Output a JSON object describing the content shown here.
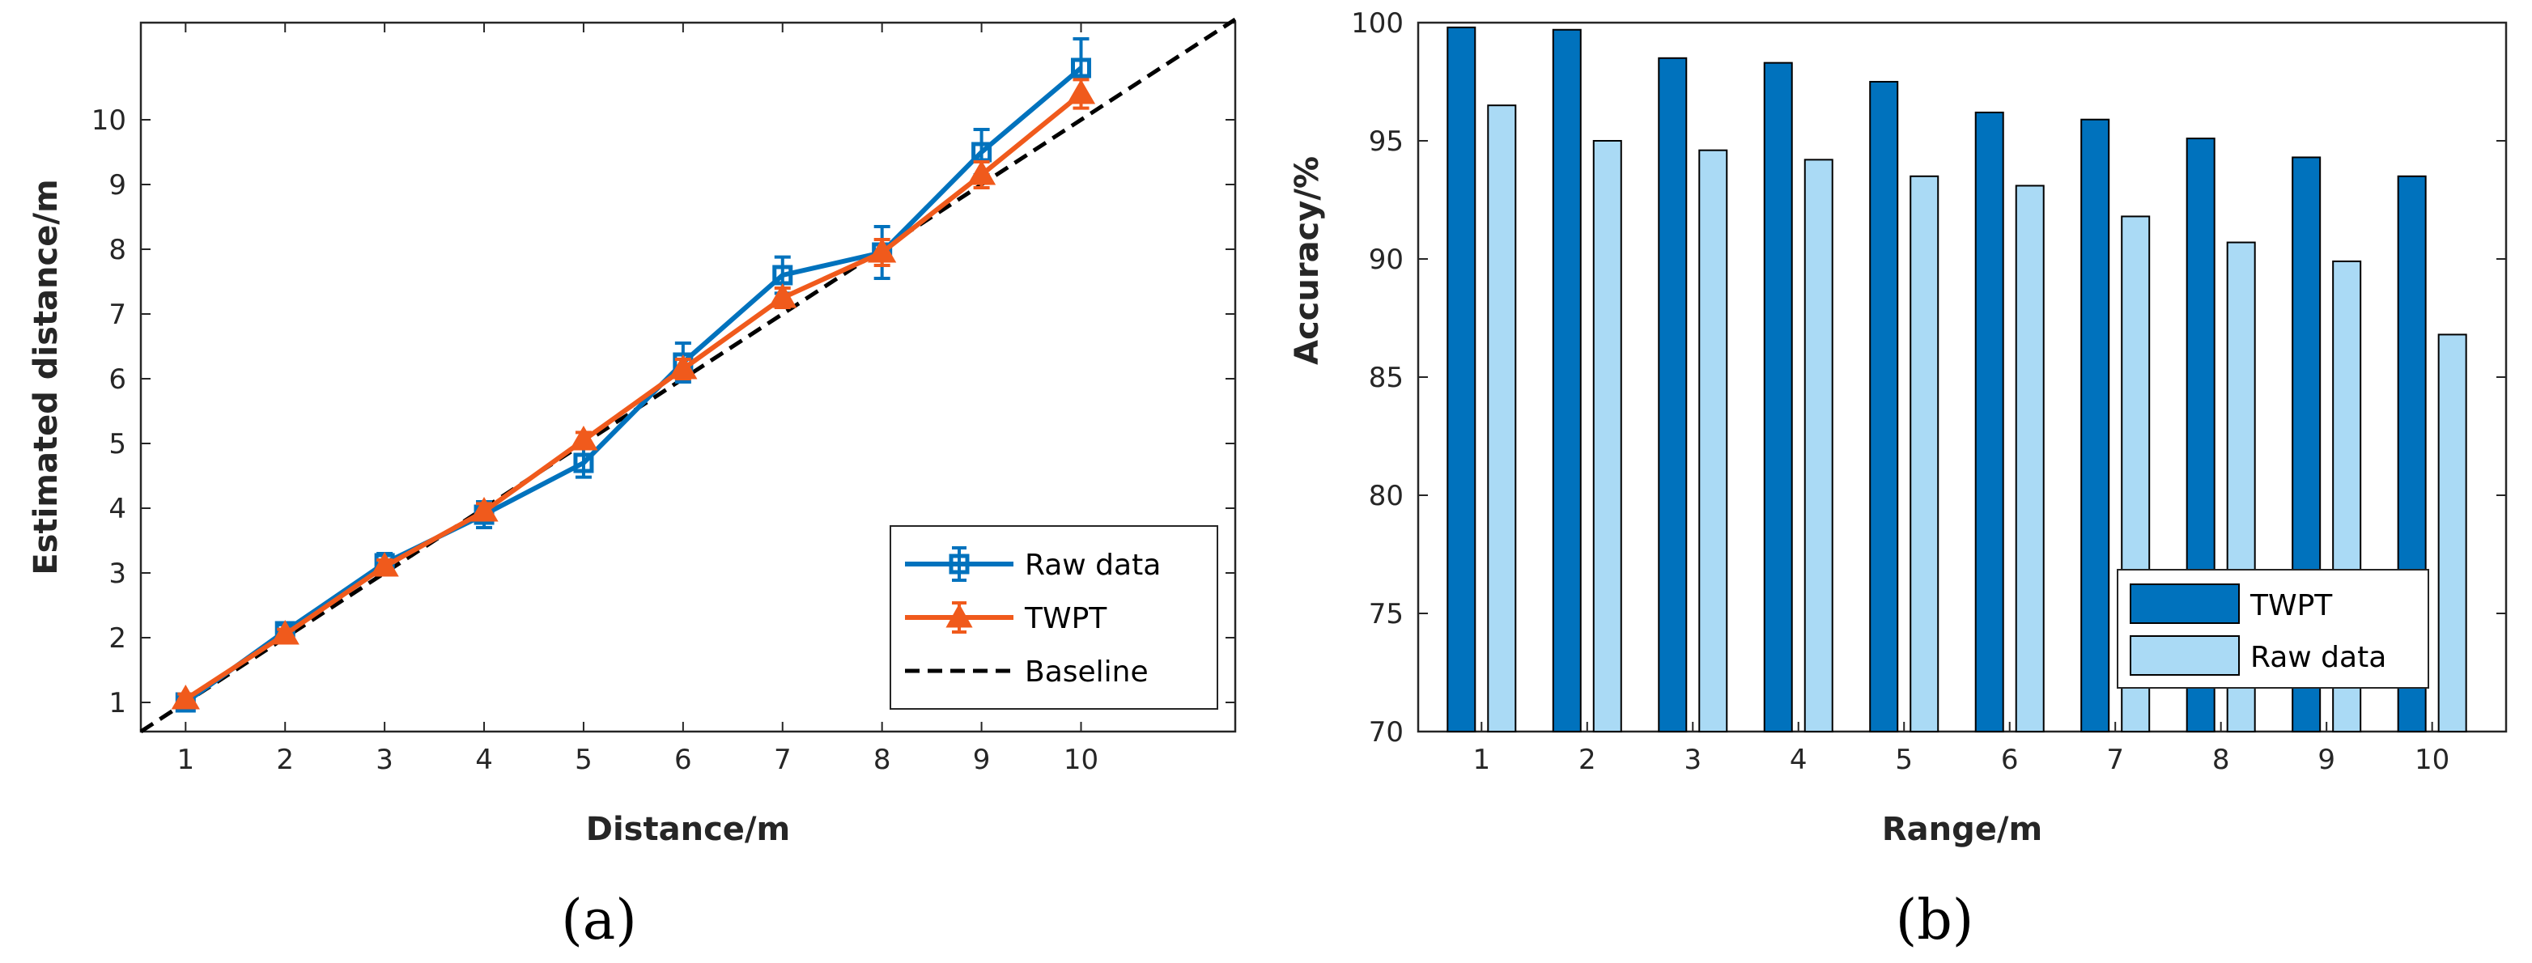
{
  "chart_data": [
    {
      "type": "line",
      "panel_label": "(a)",
      "xlabel": "Distance/m",
      "ylabel": "Estimated distance/m",
      "xlim": [
        0.55,
        11.55
      ],
      "ylim": [
        0.55,
        11.5
      ],
      "xticks": [
        "1",
        "2",
        "3",
        "4",
        "5",
        "6",
        "7",
        "8",
        "9",
        "10"
      ],
      "yticks": [
        "1",
        "2",
        "3",
        "4",
        "5",
        "6",
        "7",
        "8",
        "9",
        "10"
      ],
      "x": [
        1,
        2,
        3,
        4,
        5,
        6,
        7,
        8,
        9,
        10
      ],
      "series": [
        {
          "name": "Raw data",
          "color": "#0072BD",
          "marker": "square",
          "values": [
            1.0,
            2.1,
            3.15,
            3.9,
            4.7,
            6.25,
            7.6,
            7.95,
            9.5,
            10.8
          ],
          "errors": [
            0.12,
            0.1,
            0.15,
            0.2,
            0.22,
            0.3,
            0.28,
            0.4,
            0.35,
            0.45
          ]
        },
        {
          "name": "TWPT",
          "color": "#F05A1C",
          "marker": "triangle",
          "values": [
            1.05,
            2.05,
            3.1,
            3.95,
            5.05,
            6.15,
            7.25,
            7.95,
            9.15,
            10.4
          ],
          "errors": [
            0.08,
            0.08,
            0.1,
            0.12,
            0.12,
            0.15,
            0.15,
            0.2,
            0.2,
            0.22
          ]
        },
        {
          "name": "Baseline",
          "color": "#000000",
          "style": "dashed",
          "x": [
            0.55,
            11.55
          ],
          "values": [
            0.55,
            11.55
          ]
        }
      ],
      "legend": "bottom-right"
    },
    {
      "type": "bar",
      "panel_label": "(b)",
      "xlabel": "Range/m",
      "ylabel": "Accuracy/%",
      "ylim": [
        70,
        100
      ],
      "yticks": [
        "70",
        "75",
        "80",
        "85",
        "90",
        "95",
        "100"
      ],
      "categories": [
        "1",
        "2",
        "3",
        "4",
        "5",
        "6",
        "7",
        "8",
        "9",
        "10"
      ],
      "series": [
        {
          "name": "TWPT",
          "color": "#0072BD",
          "values": [
            99.8,
            99.7,
            98.5,
            98.3,
            97.5,
            96.2,
            95.9,
            95.1,
            94.3,
            93.5
          ]
        },
        {
          "name": "Raw data",
          "color": "#AADAF5",
          "values": [
            96.5,
            95.0,
            94.6,
            94.2,
            93.5,
            93.1,
            91.8,
            90.7,
            89.9,
            86.8
          ]
        }
      ],
      "legend": "bottom-right"
    }
  ]
}
